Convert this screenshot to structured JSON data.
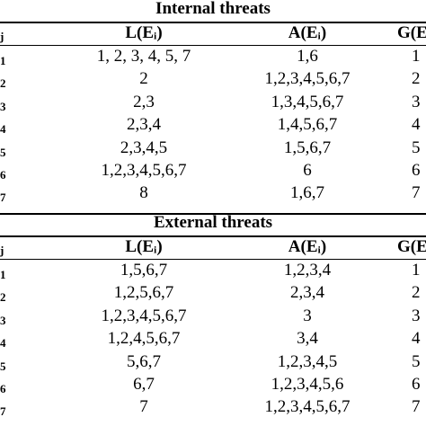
{
  "sections": [
    {
      "title": "Internal threats",
      "header": [
        "j",
        "L(Eᵢ)",
        "A(Eᵢ)",
        "G(E"
      ],
      "rows": [
        [
          "1",
          "1, 2, 3, 4, 5, 7",
          "1,6",
          "1"
        ],
        [
          "2",
          "2",
          "1,2,3,4,5,6,7",
          "2"
        ],
        [
          "3",
          "2,3",
          "1,3,4,5,6,7",
          "3"
        ],
        [
          "4",
          "2,3,4",
          "1,4,5,6,7",
          "4"
        ],
        [
          "5",
          "2,3,4,5",
          "1,5,6,7",
          "5"
        ],
        [
          "6",
          "1,2,3,4,5,6,7",
          "6",
          "6"
        ],
        [
          "7",
          "8",
          "1,6,7",
          "7"
        ]
      ]
    },
    {
      "title": "External threats",
      "header": [
        "j",
        "L(Eᵢ)",
        "A(Eᵢ)",
        "G(E"
      ],
      "rows": [
        [
          "1",
          "1,5,6,7",
          "1,2,3,4",
          "1"
        ],
        [
          "2",
          "1,2,5,6,7",
          "2,3,4",
          "2"
        ],
        [
          "3",
          "1,2,3,4,5,6,7",
          "3",
          "3"
        ],
        [
          "4",
          "1,2,4,5,6,7",
          "3,4",
          "4"
        ],
        [
          "5",
          "5,6,7",
          "1,2,3,4,5",
          "5"
        ],
        [
          "6",
          "6,7",
          "1,2,3,4,5,6",
          "6"
        ],
        [
          "7",
          "7",
          "1,2,3,4,5,6,7",
          "7"
        ]
      ]
    }
  ]
}
